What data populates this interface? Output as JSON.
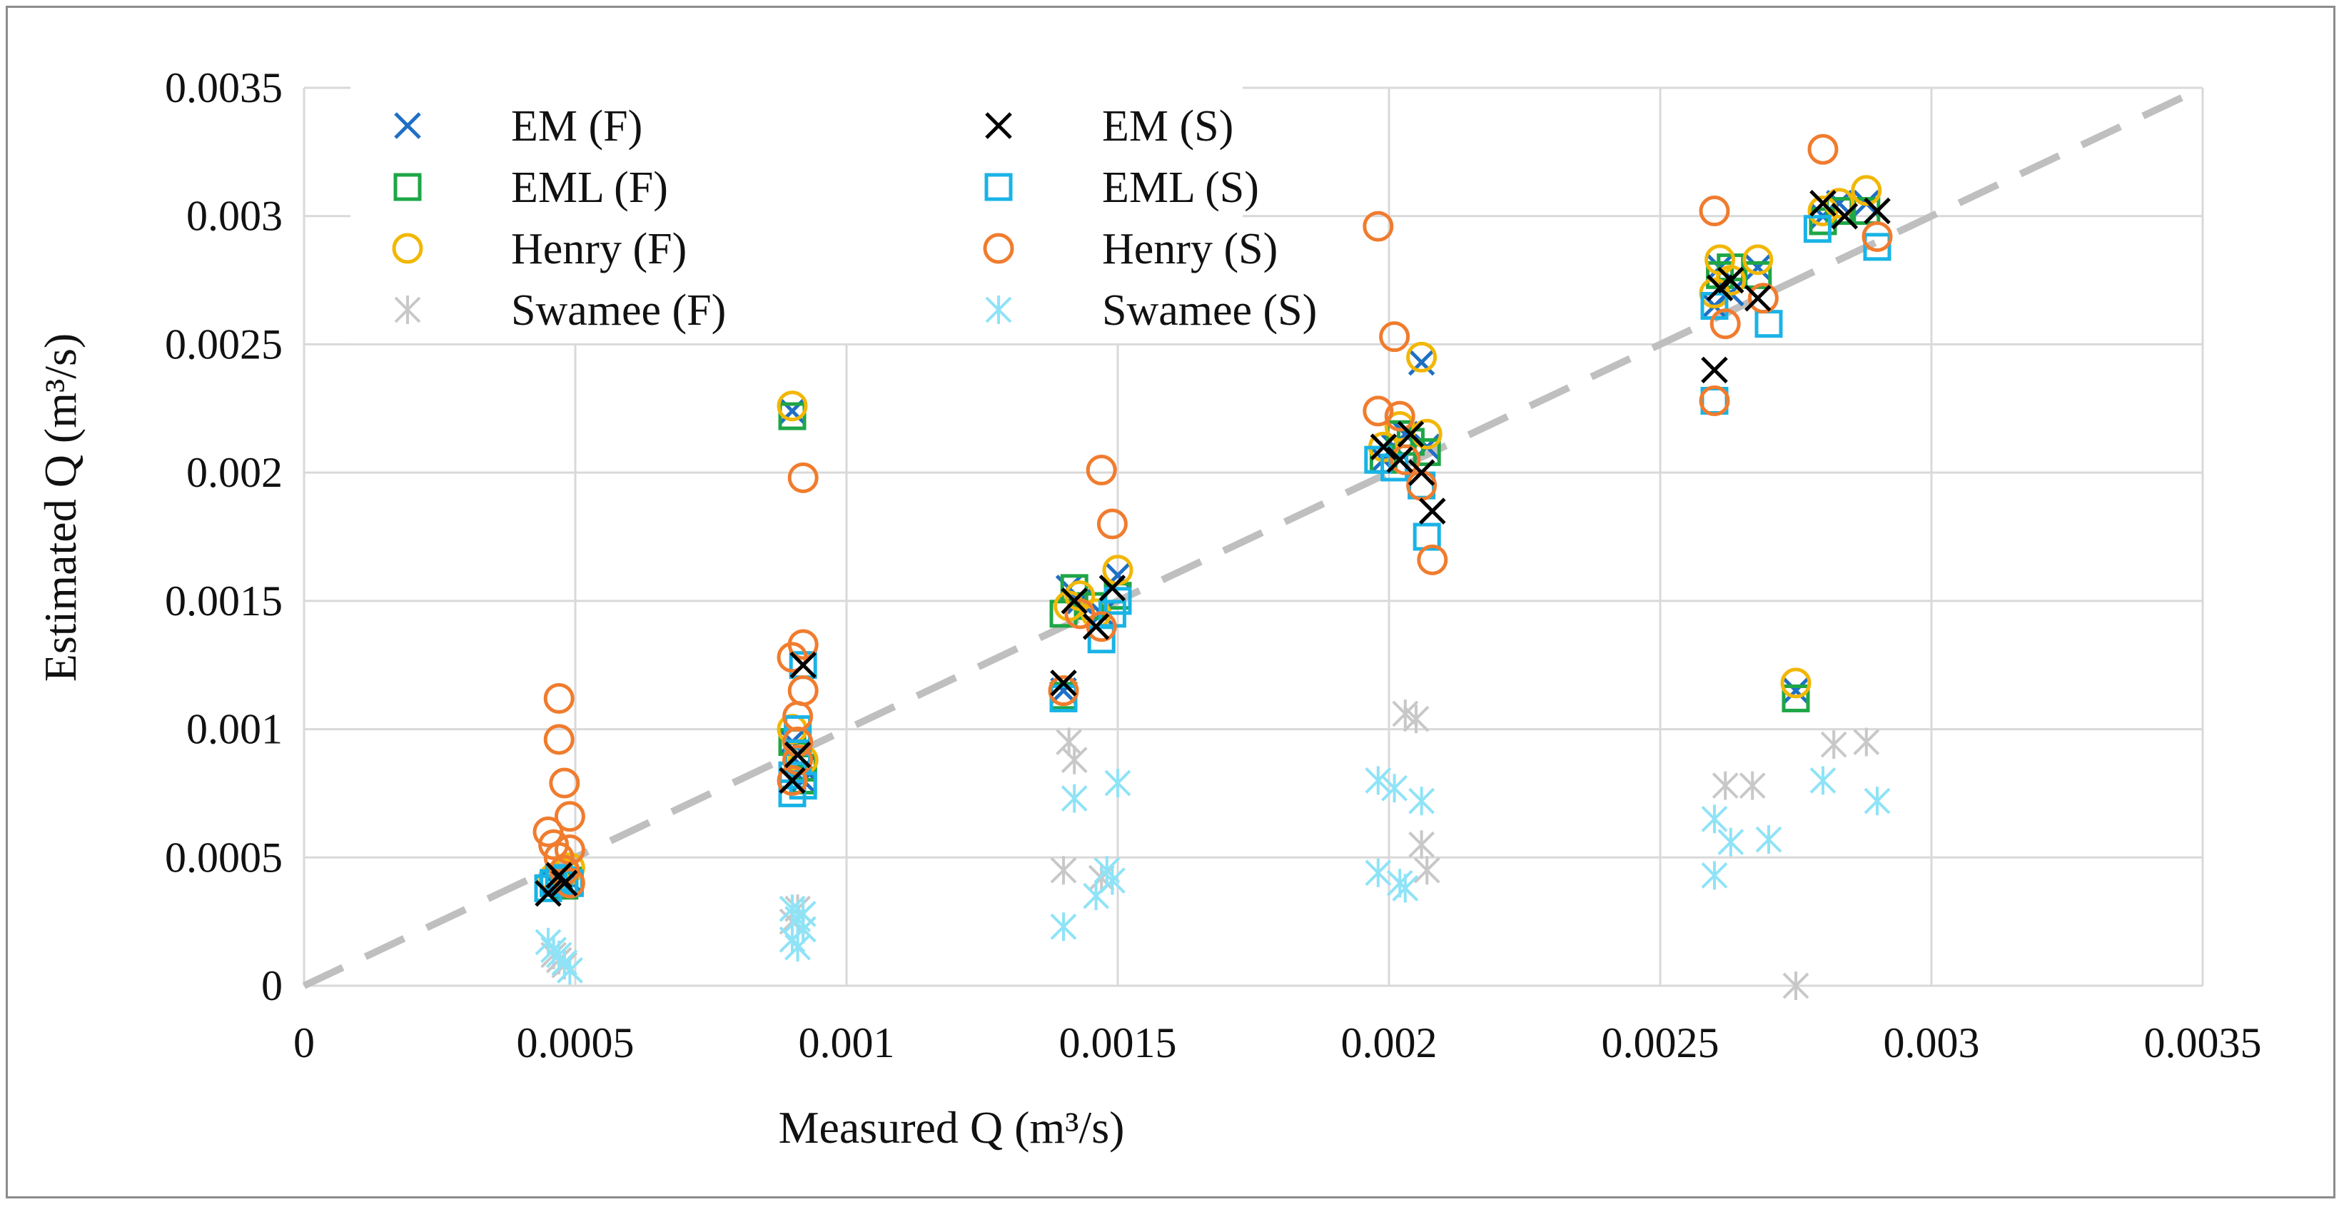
{
  "chart_data": {
    "type": "scatter",
    "xlabel": "Measured Q (m³/s)",
    "ylabel": "Estimated Q (m³/s)",
    "xlim": [
      0,
      0.0035
    ],
    "ylim": [
      0,
      0.0035
    ],
    "grid": true,
    "legend_position": "top-left",
    "x_ticks": [
      "0",
      "0.0005",
      "0.001",
      "0.0015",
      "0.002",
      "0.0025",
      "0.003",
      "0.0035"
    ],
    "y_ticks": [
      "0",
      "0.0005",
      "0.001",
      "0.0015",
      "0.002",
      "0.0025",
      "0.003",
      "0.0035"
    ],
    "reference_line": {
      "name": "1:1 line",
      "from": [
        0,
        0
      ],
      "to": [
        0.0035,
        0.0035
      ],
      "color": "#bfbfbf",
      "style": "dashed"
    },
    "series": [
      {
        "name": "EM (F)",
        "marker": "x",
        "color": "#1f6fc4",
        "points": [
          [
            0.00046,
            0.0004
          ],
          [
            0.00047,
            0.00042
          ],
          [
            0.00048,
            0.00039
          ],
          [
            0.00049,
            0.00041
          ],
          [
            0.0009,
            0.00224
          ],
          [
            0.0009,
            0.00095
          ],
          [
            0.00091,
            0.0009
          ],
          [
            0.00092,
            0.00085
          ],
          [
            0.00092,
            0.0008
          ],
          [
            0.0014,
            0.00115
          ],
          [
            0.00141,
            0.00155
          ],
          [
            0.00143,
            0.0015
          ],
          [
            0.00147,
            0.00145
          ],
          [
            0.0015,
            0.0016
          ],
          [
            0.00199,
            0.00205
          ],
          [
            0.00201,
            0.0021
          ],
          [
            0.00203,
            0.00215
          ],
          [
            0.00206,
            0.00243
          ],
          [
            0.00207,
            0.0021
          ],
          [
            0.0026,
            0.00265
          ],
          [
            0.00261,
            0.0028
          ],
          [
            0.00263,
            0.0027
          ],
          [
            0.00268,
            0.0028
          ],
          [
            0.00275,
            0.00115
          ],
          [
            0.0028,
            0.003
          ],
          [
            0.00283,
            0.00305
          ],
          [
            0.00288,
            0.00305
          ]
        ]
      },
      {
        "name": "EML (F)",
        "marker": "square",
        "color": "#1ea646",
        "points": [
          [
            0.00046,
            0.0004
          ],
          [
            0.00047,
            0.00042
          ],
          [
            0.00048,
            0.00039
          ],
          [
            0.00049,
            0.00041
          ],
          [
            0.0009,
            0.00222
          ],
          [
            0.0009,
            0.00095
          ],
          [
            0.00091,
            0.0009
          ],
          [
            0.00092,
            0.00085
          ],
          [
            0.00092,
            0.0008
          ],
          [
            0.0014,
            0.00113
          ],
          [
            0.0014,
            0.00145
          ],
          [
            0.00142,
            0.00155
          ],
          [
            0.00145,
            0.00148
          ],
          [
            0.0015,
            0.00152
          ],
          [
            0.00199,
            0.00205
          ],
          [
            0.00202,
            0.00215
          ],
          [
            0.00204,
            0.00212
          ],
          [
            0.00207,
            0.00208
          ],
          [
            0.0026,
            0.00265
          ],
          [
            0.00261,
            0.00277
          ],
          [
            0.00263,
            0.0028
          ],
          [
            0.00268,
            0.00277
          ],
          [
            0.00275,
            0.00112
          ],
          [
            0.0028,
            0.00298
          ],
          [
            0.00283,
            0.00302
          ],
          [
            0.00288,
            0.00302
          ]
        ]
      },
      {
        "name": "Henry (F)",
        "marker": "circle",
        "color": "#f2b705",
        "points": [
          [
            0.00046,
            0.00042
          ],
          [
            0.00048,
            0.00044
          ],
          [
            0.00049,
            0.00046
          ],
          [
            0.0009,
            0.00226
          ],
          [
            0.0009,
            0.001
          ],
          [
            0.00091,
            0.00095
          ],
          [
            0.00092,
            0.00088
          ],
          [
            0.0014,
            0.00115
          ],
          [
            0.00141,
            0.00148
          ],
          [
            0.00143,
            0.00152
          ],
          [
            0.00146,
            0.00145
          ],
          [
            0.0015,
            0.00162
          ],
          [
            0.00199,
            0.0021
          ],
          [
            0.00202,
            0.00218
          ],
          [
            0.00206,
            0.00245
          ],
          [
            0.00207,
            0.00215
          ],
          [
            0.0026,
            0.0027
          ],
          [
            0.00261,
            0.00283
          ],
          [
            0.00263,
            0.00275
          ],
          [
            0.00268,
            0.00283
          ],
          [
            0.00275,
            0.00118
          ],
          [
            0.0028,
            0.00302
          ],
          [
            0.00283,
            0.00305
          ],
          [
            0.00288,
            0.0031
          ]
        ]
      },
      {
        "name": "Swamee (F)",
        "marker": "asterisk",
        "color": "#c8c8c8",
        "points": [
          [
            0.00046,
            0.00012
          ],
          [
            0.00047,
            0.0001
          ],
          [
            0.00048,
            8e-05
          ],
          [
            0.0009,
            0.00025
          ],
          [
            0.00091,
            0.0003
          ],
          [
            0.00092,
            0.00022
          ],
          [
            0.0014,
            0.00045
          ],
          [
            0.00141,
            0.00095
          ],
          [
            0.00142,
            0.00088
          ],
          [
            0.00147,
            0.00042
          ],
          [
            0.00203,
            0.00106
          ],
          [
            0.00205,
            0.00104
          ],
          [
            0.00206,
            0.00055
          ],
          [
            0.00207,
            0.00045
          ],
          [
            0.00262,
            0.00078
          ],
          [
            0.00267,
            0.00078
          ],
          [
            0.00275,
            0.0
          ],
          [
            0.00282,
            0.00094
          ],
          [
            0.00288,
            0.00095
          ]
        ]
      },
      {
        "name": "EM (S)",
        "marker": "x",
        "color": "#000000",
        "points": [
          [
            0.00045,
            0.00036
          ],
          [
            0.00047,
            0.00043
          ],
          [
            0.00048,
            0.0004
          ],
          [
            0.0009,
            0.0008
          ],
          [
            0.00091,
            0.0009
          ],
          [
            0.00092,
            0.00125
          ],
          [
            0.0014,
            0.00118
          ],
          [
            0.00142,
            0.0015
          ],
          [
            0.00146,
            0.0014
          ],
          [
            0.00149,
            0.00155
          ],
          [
            0.00199,
            0.0021
          ],
          [
            0.00202,
            0.00205
          ],
          [
            0.00204,
            0.00215
          ],
          [
            0.00206,
            0.002
          ],
          [
            0.00208,
            0.00185
          ],
          [
            0.0026,
            0.0024
          ],
          [
            0.00261,
            0.00272
          ],
          [
            0.00263,
            0.00275
          ],
          [
            0.00268,
            0.00268
          ],
          [
            0.0028,
            0.00305
          ],
          [
            0.00284,
            0.003
          ],
          [
            0.0029,
            0.00302
          ]
        ]
      },
      {
        "name": "EML (S)",
        "marker": "square",
        "color": "#19b3e6",
        "points": [
          [
            0.00045,
            0.00038
          ],
          [
            0.00046,
            0.0004
          ],
          [
            0.00047,
            0.00042
          ],
          [
            0.00048,
            0.00041
          ],
          [
            0.00049,
            0.0004
          ],
          [
            0.0009,
            0.00075
          ],
          [
            0.0009,
            0.00082
          ],
          [
            0.00091,
            0.00088
          ],
          [
            0.00091,
            0.00095
          ],
          [
            0.00091,
            0.001
          ],
          [
            0.00092,
            0.00078
          ],
          [
            0.00092,
            0.00125
          ],
          [
            0.0014,
            0.00112
          ],
          [
            0.00147,
            0.00135
          ],
          [
            0.00149,
            0.00145
          ],
          [
            0.0015,
            0.0015
          ],
          [
            0.00198,
            0.00205
          ],
          [
            0.00201,
            0.00202
          ],
          [
            0.00206,
            0.00195
          ],
          [
            0.00207,
            0.00175
          ],
          [
            0.0026,
            0.00228
          ],
          [
            0.0026,
            0.00265
          ],
          [
            0.0027,
            0.00258
          ],
          [
            0.00279,
            0.00295
          ],
          [
            0.0029,
            0.00288
          ]
        ]
      },
      {
        "name": "Henry (S)",
        "marker": "circle",
        "color": "#f07c2e",
        "points": [
          [
            0.00045,
            0.0006
          ],
          [
            0.00046,
            0.00055
          ],
          [
            0.00047,
            0.0005
          ],
          [
            0.00048,
            0.00045
          ],
          [
            0.00049,
            0.0004
          ],
          [
            0.00047,
            0.00112
          ],
          [
            0.00047,
            0.00096
          ],
          [
            0.00048,
            0.00079
          ],
          [
            0.00049,
            0.00066
          ],
          [
            0.00049,
            0.00053
          ],
          [
            0.0009,
            0.00128
          ],
          [
            0.00091,
            0.00105
          ],
          [
            0.00091,
            0.00095
          ],
          [
            0.00091,
            0.00088
          ],
          [
            0.00092,
            0.00133
          ],
          [
            0.00092,
            0.00115
          ],
          [
            0.00092,
            0.00198
          ],
          [
            0.0009,
            0.0008
          ],
          [
            0.0014,
            0.00115
          ],
          [
            0.00143,
            0.00145
          ],
          [
            0.00147,
            0.0014
          ],
          [
            0.00147,
            0.00201
          ],
          [
            0.00149,
            0.0018
          ],
          [
            0.00198,
            0.00296
          ],
          [
            0.00198,
            0.00224
          ],
          [
            0.00201,
            0.00253
          ],
          [
            0.00202,
            0.00222
          ],
          [
            0.00203,
            0.00205
          ],
          [
            0.00206,
            0.00195
          ],
          [
            0.00208,
            0.00166
          ],
          [
            0.0026,
            0.00302
          ],
          [
            0.0026,
            0.00228
          ],
          [
            0.00262,
            0.00258
          ],
          [
            0.00269,
            0.00268
          ],
          [
            0.0028,
            0.00326
          ],
          [
            0.0029,
            0.00292
          ]
        ]
      },
      {
        "name": "Swamee (S)",
        "marker": "asterisk",
        "color": "#8fe3f7",
        "points": [
          [
            0.00045,
            0.00017
          ],
          [
            0.00046,
            0.00014
          ],
          [
            0.00047,
            0.00012
          ],
          [
            0.00048,
            9e-05
          ],
          [
            0.00049,
            6e-05
          ],
          [
            0.0009,
            0.0003
          ],
          [
            0.0009,
            0.00018
          ],
          [
            0.00091,
            0.00015
          ],
          [
            0.00091,
            0.00026
          ],
          [
            0.00092,
            0.00022
          ],
          [
            0.00092,
            0.00028
          ],
          [
            0.0014,
            0.00023
          ],
          [
            0.00142,
            0.00073
          ],
          [
            0.00146,
            0.00035
          ],
          [
            0.00148,
            0.00045
          ],
          [
            0.00149,
            0.00041
          ],
          [
            0.0015,
            0.00079
          ],
          [
            0.00198,
            0.00044
          ],
          [
            0.00198,
            0.0008
          ],
          [
            0.00201,
            0.00077
          ],
          [
            0.00202,
            0.0004
          ],
          [
            0.00203,
            0.00038
          ],
          [
            0.00206,
            0.00072
          ],
          [
            0.0026,
            0.00065
          ],
          [
            0.0026,
            0.00043
          ],
          [
            0.00263,
            0.00056
          ],
          [
            0.0027,
            0.00057
          ],
          [
            0.0028,
            0.0008
          ],
          [
            0.0029,
            0.00072
          ]
        ]
      }
    ]
  }
}
